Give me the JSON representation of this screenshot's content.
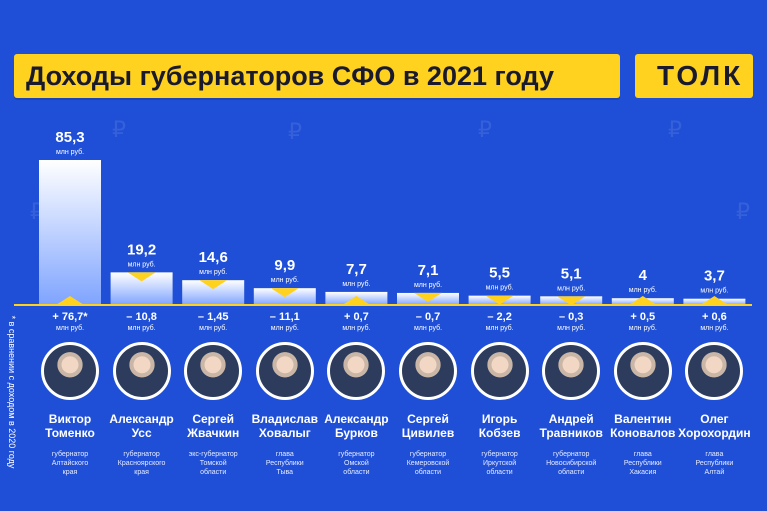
{
  "title": "Доходы губернаторов СФО в 2021 году",
  "logo": "ТОЛК",
  "side_note": "* в сравнении с доходом в 2020 году",
  "colors": {
    "background": "#1f4fd6",
    "accent": "#ffd21f",
    "bar_top": "#ffffff",
    "bar_bottom": "#7fa4ff"
  },
  "chart_data": {
    "type": "bar",
    "unit": "млн руб.",
    "categories": [
      "Виктор Томенко",
      "Александр Усс",
      "Сергей Жвачкин",
      "Владислав Ховалыг",
      "Александр Бурков",
      "Сергей Цивилев",
      "Игорь Кобзев",
      "Андрей Травников",
      "Валентин Коновалов",
      "Олег Хорохордин"
    ],
    "values": [
      85.3,
      19.2,
      14.6,
      9.9,
      7.7,
      7.1,
      5.5,
      5.1,
      4,
      3.7
    ],
    "value_labels": [
      "85,3",
      "19,2",
      "14,6",
      "9,9",
      "7,7",
      "7,1",
      "5,5",
      "5,1",
      "4",
      "3,7"
    ],
    "change_labels": [
      "+ 76,7*",
      "– 10,8",
      "– 1,45",
      "– 11,1",
      "+ 0,7",
      "– 0,7",
      "– 2,2",
      "– 0,3",
      "+ 0,5",
      "+ 0,6"
    ],
    "change_direction": [
      "up",
      "down",
      "down",
      "down",
      "up",
      "down",
      "down",
      "down",
      "up",
      "up"
    ]
  },
  "people": [
    {
      "first": "Виктор",
      "last": "Томенко",
      "role1": "губернатор",
      "role2": "Алтайского",
      "role3": "края"
    },
    {
      "first": "Александр",
      "last": "Усс",
      "role1": "губернатор",
      "role2": "Красноярского",
      "role3": "края"
    },
    {
      "first": "Сергей",
      "last": "Жвачкин",
      "role1": "экс-губернатор",
      "role2": "Томской",
      "role3": "области"
    },
    {
      "first": "Владислав",
      "last": "Ховалыг",
      "role1": "глава",
      "role2": "Республики",
      "role3": "Тыва"
    },
    {
      "first": "Александр",
      "last": "Бурков",
      "role1": "губернатор",
      "role2": "Омской",
      "role3": "области"
    },
    {
      "first": "Сергей",
      "last": "Цивилев",
      "role1": "губернатор",
      "role2": "Кемеровской",
      "role3": "области"
    },
    {
      "first": "Игорь",
      "last": "Кобзев",
      "role1": "губернатор",
      "role2": "Иркутской",
      "role3": "области"
    },
    {
      "first": "Андрей",
      "last": "Травников",
      "role1": "губернатор",
      "role2": "Новосибирской",
      "role3": "области"
    },
    {
      "first": "Валентин",
      "last": "Коновалов",
      "role1": "глава",
      "role2": "Республики",
      "role3": "Хакасия"
    },
    {
      "first": "Олег",
      "last": "Хорохордин",
      "role1": "глава",
      "role2": "Республики",
      "role3": "Алтай"
    }
  ]
}
